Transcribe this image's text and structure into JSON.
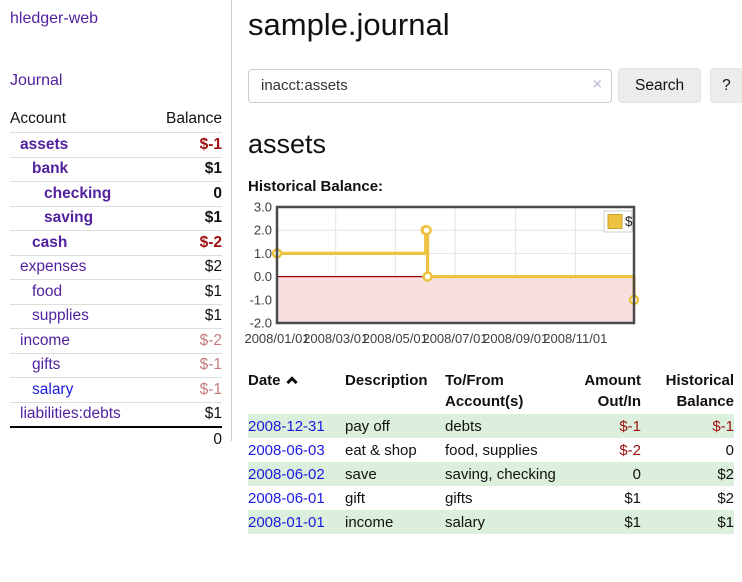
{
  "app": {
    "brand": "hledger-web",
    "nav_journal": "Journal"
  },
  "sidebar": {
    "account_header": "Account",
    "balance_header": "Balance",
    "accounts": [
      {
        "name": "assets",
        "depth": 1,
        "balance": "$-1",
        "bold": true,
        "neg": "strong",
        "link": "purple"
      },
      {
        "name": "bank",
        "depth": 2,
        "balance": "$1",
        "bold": true,
        "neg": "",
        "link": "purple"
      },
      {
        "name": "checking",
        "depth": 3,
        "balance": "0",
        "bold": true,
        "neg": "",
        "link": "purple"
      },
      {
        "name": "saving",
        "depth": 3,
        "balance": "$1",
        "bold": true,
        "neg": "",
        "link": "purple"
      },
      {
        "name": "cash",
        "depth": 2,
        "balance": "$-2",
        "bold": true,
        "neg": "strong",
        "link": "purple"
      },
      {
        "name": "expenses",
        "depth": 1,
        "balance": "$2",
        "bold": false,
        "neg": "",
        "link": "purple"
      },
      {
        "name": "food",
        "depth": 2,
        "balance": "$1",
        "bold": false,
        "neg": "",
        "link": "purple"
      },
      {
        "name": "supplies",
        "depth": 2,
        "balance": "$1",
        "bold": false,
        "neg": "",
        "link": "purple"
      },
      {
        "name": "income",
        "depth": 1,
        "balance": "$-2",
        "bold": false,
        "neg": "soft",
        "link": "purple"
      },
      {
        "name": "gifts",
        "depth": 2,
        "balance": "$-1",
        "bold": false,
        "neg": "soft",
        "link": "purple"
      },
      {
        "name": "salary",
        "depth": 2,
        "balance": "$-1",
        "bold": false,
        "neg": "soft",
        "link": "blue"
      },
      {
        "name": "liabilities:debts",
        "depth": 1,
        "balance": "$1",
        "bold": false,
        "neg": "",
        "link": "purple"
      }
    ],
    "total": "0"
  },
  "header": {
    "title": "sample.journal"
  },
  "search": {
    "value": "inacct:assets",
    "clear_icon": "×",
    "button": "Search",
    "help": "?"
  },
  "account_page": {
    "heading": "assets",
    "chart_label": "Historical Balance:"
  },
  "chart_data": {
    "type": "line",
    "title": "Historical Balance",
    "style": "steps",
    "series": [
      {
        "name": "$",
        "color": "#edc240",
        "points": [
          [
            "2008-01-01",
            1
          ],
          [
            "2008-06-01",
            2
          ],
          [
            "2008-06-02",
            2
          ],
          [
            "2008-06-03",
            0
          ],
          [
            "2008-12-31",
            -1
          ]
        ]
      }
    ],
    "x_range": [
      "2008-01-01",
      "2008-12-31"
    ],
    "xticks": [
      "2008/01/01",
      "2008/03/01",
      "2008/05/01",
      "2008/07/01",
      "2008/09/01",
      "2008/11/01"
    ],
    "yticks": [
      3.0,
      2.0,
      1.0,
      0.0,
      -1.0,
      -2.0
    ],
    "ylim": [
      -2,
      3
    ],
    "grid": true,
    "legend_position": "top-right",
    "negative_fill": "#fadcde",
    "zero_line_color": "#9b0000",
    "border_color": "#4a4a4a",
    "grid_color": "#e2e2e2"
  },
  "register": {
    "columns": {
      "date": "Date",
      "description": "Description",
      "accounts_line1": "To/From",
      "accounts_line2": "Account(s)",
      "amount_line1": "Amount",
      "amount_line2": "Out/In",
      "balance_line1": "Historical",
      "balance_line2": "Balance"
    },
    "rows": [
      {
        "date": "2008-12-31",
        "description": "pay off",
        "accounts": "debts",
        "amount": "$-1",
        "amount_neg": true,
        "balance": "$-1",
        "balance_neg": true
      },
      {
        "date": "2008-06-03",
        "description": "eat & shop",
        "accounts": "food, supplies",
        "amount": "$-2",
        "amount_neg": true,
        "balance": "0",
        "balance_neg": false
      },
      {
        "date": "2008-06-02",
        "description": "save",
        "accounts": "saving, checking",
        "amount": "0",
        "amount_neg": false,
        "balance": "$2",
        "balance_neg": false
      },
      {
        "date": "2008-06-01",
        "description": "gift",
        "accounts": "gifts",
        "amount": "$1",
        "amount_neg": false,
        "balance": "$2",
        "balance_neg": false
      },
      {
        "date": "2008-01-01",
        "description": "income",
        "accounts": "salary",
        "amount": "$1",
        "amount_neg": false,
        "balance": "$1",
        "balance_neg": false
      }
    ]
  }
}
